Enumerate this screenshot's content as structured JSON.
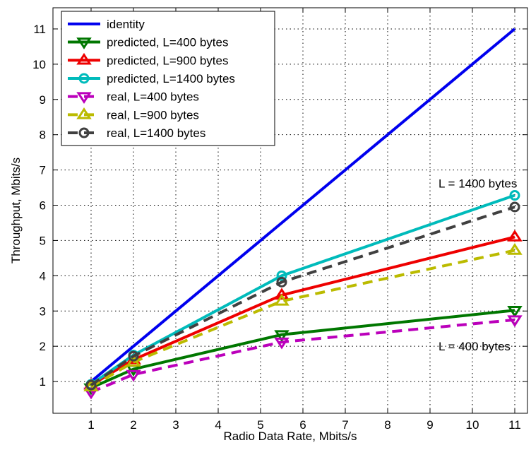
{
  "chart_data": {
    "type": "line",
    "title": "",
    "xlabel": "Radio Data Rate, Mbits/s",
    "ylabel": "Throughput, Mbits/s",
    "xlim": [
      0.1,
      11.3
    ],
    "ylim": [
      0.1,
      11.6
    ],
    "xticks": [
      1,
      2,
      3,
      4,
      5,
      6,
      7,
      8,
      9,
      10,
      11
    ],
    "yticks": [
      1,
      2,
      3,
      4,
      5,
      6,
      7,
      8,
      9,
      10,
      11
    ],
    "grid": true,
    "legend_position": "top-left",
    "series": [
      {
        "name": "identity",
        "color": "#0000ee",
        "dashed": false,
        "marker": "none",
        "x": [
          1,
          11
        ],
        "y": [
          1,
          11
        ]
      },
      {
        "name": "predicted, L=400 bytes",
        "color": "#007700",
        "dashed": false,
        "marker": "triangle-down",
        "x": [
          1,
          2,
          5.5,
          11
        ],
        "y": [
          0.82,
          1.35,
          2.33,
          3.02
        ]
      },
      {
        "name": "predicted, L=900 bytes",
        "color": "#ee0000",
        "dashed": false,
        "marker": "triangle-up",
        "x": [
          1,
          2,
          5.5,
          11
        ],
        "y": [
          0.9,
          1.62,
          3.45,
          5.1
        ]
      },
      {
        "name": "predicted, L=1400 bytes",
        "color": "#00bbbb",
        "dashed": false,
        "marker": "circle",
        "x": [
          1,
          2,
          5.5,
          11
        ],
        "y": [
          0.92,
          1.75,
          4.0,
          6.28
        ]
      },
      {
        "name": "real, L=400 bytes",
        "color": "#bb00bb",
        "dashed": true,
        "marker": "triangle-down",
        "x": [
          1,
          2,
          5.5,
          11
        ],
        "y": [
          0.7,
          1.2,
          2.12,
          2.75
        ]
      },
      {
        "name": "real, L=900 bytes",
        "color": "#bbbb00",
        "dashed": true,
        "marker": "triangle-up",
        "x": [
          1,
          2,
          5.5,
          11
        ],
        "y": [
          0.85,
          1.55,
          3.28,
          4.72
        ]
      },
      {
        "name": "real, L=1400 bytes",
        "color": "#404040",
        "dashed": true,
        "marker": "circle",
        "x": [
          1,
          2,
          5.5,
          11
        ],
        "y": [
          0.9,
          1.72,
          3.82,
          5.95
        ]
      }
    ],
    "annotations": [
      {
        "text": "L = 1400 bytes",
        "x": 9.2,
        "y": 6.5
      },
      {
        "text": "L = 400 bytes",
        "x": 9.2,
        "y": 1.88
      }
    ]
  }
}
